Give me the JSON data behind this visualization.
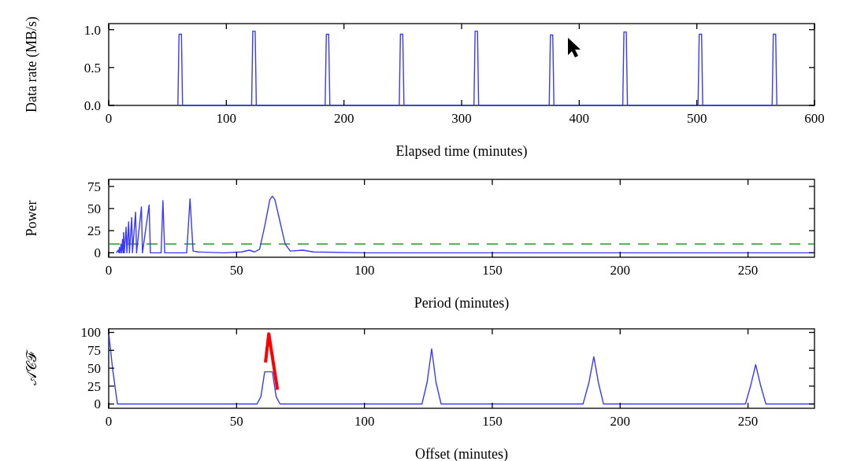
{
  "chart_data": [
    {
      "type": "line",
      "xlabel": "Elapsed time (minutes)",
      "ylabel": "Data rate (MB/s)",
      "xlim": [
        0,
        600
      ],
      "ylim": [
        0,
        1.08
      ],
      "xticks": [
        0,
        100,
        200,
        300,
        400,
        500,
        600
      ],
      "yticks": [
        {
          "value": 0,
          "label": "0.0"
        },
        {
          "value": 0.5,
          "label": "0.5"
        },
        {
          "value": 1,
          "label": "1.0"
        }
      ],
      "series": [
        {
          "color": "#3a3aff",
          "x": [
            58.8,
            59.8,
            61.8,
            62.8,
            121.5,
            122.5,
            124.5,
            125.5,
            184,
            185,
            187,
            188,
            247,
            248,
            250,
            251,
            310.5,
            311.5,
            313.5,
            314.5,
            374.5,
            375.5,
            377.5,
            378.5,
            437,
            438,
            440,
            441,
            501,
            502,
            504,
            505,
            564,
            565,
            567,
            568
          ],
          "values": [
            0,
            0.94,
            0.94,
            0,
            0,
            0.98,
            0.98,
            0,
            0,
            0.94,
            0.94,
            0,
            0,
            0.94,
            0.94,
            0,
            0,
            0.98,
            0.98,
            0,
            0,
            0.93,
            0.93,
            0,
            0,
            0.97,
            0.97,
            0,
            0,
            0.94,
            0.94,
            0,
            0,
            0.94,
            0.94,
            0
          ]
        }
      ]
    },
    {
      "type": "line",
      "xlabel": "Period (minutes)",
      "ylabel": "Power",
      "xlim": [
        0,
        276
      ],
      "ylim": [
        -5,
        83
      ],
      "xticks": [
        0,
        50,
        100,
        150,
        200,
        250
      ],
      "yticks": [
        0,
        25,
        50,
        75
      ],
      "ref_lines": [
        {
          "axis": "y",
          "value": 10,
          "color": "#008000",
          "line_style": "dashed"
        }
      ],
      "series": [
        {
          "color": "#3a3aff",
          "x": [
            3,
            3.7,
            4.0,
            4.2,
            4.5,
            4.8,
            5.1,
            5.4,
            5.7,
            5.8,
            6.1,
            6.8,
            7.1,
            7.8,
            8.1,
            9.0,
            9.3,
            10.5,
            10.9,
            12.8,
            13.2,
            15.8,
            16.3,
            20.5,
            21.2,
            21.9,
            30.5,
            31.8,
            33,
            35,
            45,
            52,
            55,
            57,
            59,
            61,
            63,
            64,
            65,
            67,
            69,
            71,
            76,
            80,
            100,
            150,
            200,
            276
          ],
          "values": [
            0,
            3,
            0,
            6,
            0,
            10,
            0,
            15,
            0,
            23,
            0,
            29,
            0,
            35,
            0,
            40,
            0,
            46,
            0,
            52,
            0,
            54,
            0,
            0,
            59,
            0,
            0,
            61,
            2,
            1,
            0,
            1,
            3,
            1,
            4,
            30,
            60,
            64,
            60,
            35,
            10,
            2,
            3,
            1,
            0,
            0,
            0,
            0
          ]
        }
      ]
    },
    {
      "type": "line",
      "xlabel": "Offset (minutes)",
      "ylabel": "𝒜𝒞ℱ",
      "xlim": [
        0,
        276
      ],
      "ylim": [
        -6,
        105
      ],
      "xticks": [
        0,
        50,
        100,
        150,
        200,
        250
      ],
      "yticks": [
        0,
        25,
        50,
        75,
        100
      ],
      "series": [
        {
          "color": "#3a3aff",
          "x": [
            0,
            1.5,
            3.4,
            40,
            58,
            59.5,
            61,
            62.6,
            64,
            65.5,
            67,
            122.5,
            124.5,
            126.3,
            128,
            130,
            185.5,
            187.8,
            189.7,
            191.5,
            193.5,
            249,
            251,
            253,
            255,
            257,
            276
          ],
          "values": [
            100,
            50,
            0,
            0,
            0,
            10,
            45,
            null,
            45,
            10,
            0,
            0,
            30,
            77,
            30,
            0,
            0,
            30,
            66,
            30,
            0,
            0,
            25,
            55,
            25,
            0,
            0
          ]
        },
        {
          "color": "#ff0000",
          "x": [
            61.3,
            62.6,
            66
          ],
          "values": [
            58,
            98,
            20
          ]
        }
      ]
    }
  ]
}
